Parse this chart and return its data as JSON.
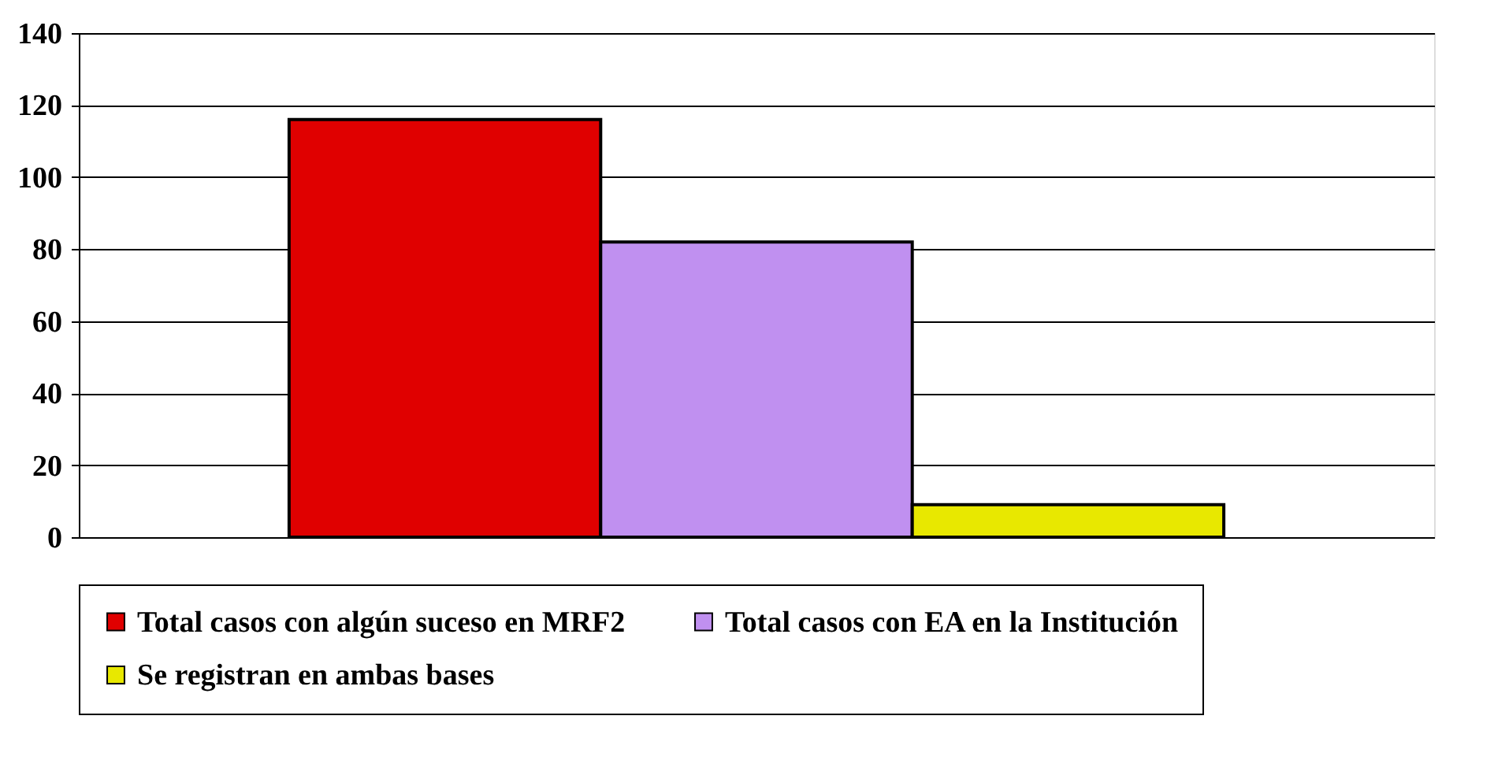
{
  "chart_data": {
    "type": "bar",
    "categories": [
      null
    ],
    "series": [
      {
        "name": "Total casos con algún suceso en MRF2",
        "color": "#e00000",
        "values": [
          116
        ]
      },
      {
        "name": "Total casos con EA en la Institución",
        "color": "#c090f0",
        "values": [
          82
        ]
      },
      {
        "name": "Se registran en ambas bases",
        "color": "#e8e800",
        "values": [
          9
        ]
      }
    ],
    "ylim": [
      0,
      140
    ],
    "yticks": [
      0,
      20,
      40,
      60,
      80,
      100,
      120,
      140
    ],
    "grid": "y",
    "legend": "bottom",
    "tick_labels": "y"
  }
}
